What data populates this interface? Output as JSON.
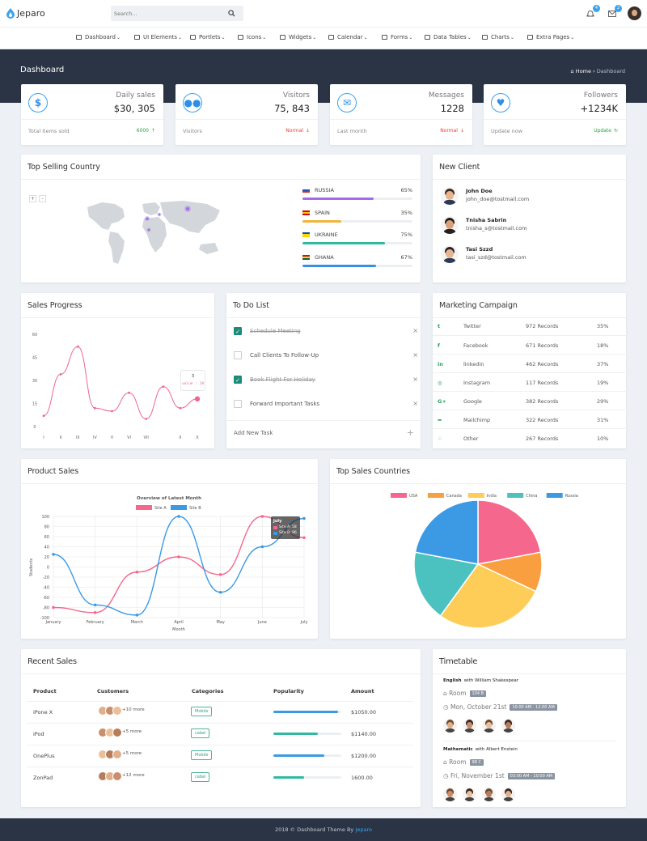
{
  "app": {
    "name": "Jeparo",
    "search_placeholder": "Search...",
    "notif_count": "4",
    "mail_count": "2"
  },
  "nav": [
    {
      "label": "Dashboard",
      "icon": "home-icon"
    },
    {
      "label": "UI Elements",
      "icon": "grid-icon"
    },
    {
      "label": "Portlets",
      "icon": "pie-icon"
    },
    {
      "label": "Icons",
      "icon": "monitor-icon"
    },
    {
      "label": "Widgets",
      "icon": "list-icon"
    },
    {
      "label": "Calendar",
      "icon": "calendar-icon"
    },
    {
      "label": "Forms",
      "icon": "form-icon"
    },
    {
      "label": "Data Tables",
      "icon": "table-icon"
    },
    {
      "label": "Charts",
      "icon": "bar-chart-icon"
    },
    {
      "label": "Extra Pages",
      "icon": "file-icon"
    }
  ],
  "hero": {
    "title": "Dashboard",
    "crumb_home": "Home",
    "crumb_current": "Dashboard"
  },
  "stats": [
    {
      "label": "Daily sales",
      "value": "$30, 305",
      "sub": "Total items sold",
      "status": "6000",
      "status_color": "#2aa148",
      "icon": "dollar-icon"
    },
    {
      "label": "Visitors",
      "value": "75, 843",
      "sub": "Visitors",
      "status": "Normal",
      "status_color": "#e2463c",
      "icon": "users-icon"
    },
    {
      "label": "Messages",
      "value": "1228",
      "sub": "Last month",
      "status": "Normal",
      "status_color": "#e2463c",
      "icon": "envelope-icon"
    },
    {
      "label": "Followers",
      "value": "+1234K",
      "sub": "Update now",
      "status": "Update",
      "status_color": "#2aa148",
      "icon": "heart-icon"
    }
  ],
  "top_selling": {
    "title": "Top Selling Country",
    "countries": [
      {
        "name": "RUSSIA",
        "percent": "65%",
        "fraction": 0.65,
        "color": "#a46ae8"
      },
      {
        "name": "SPAIN",
        "percent": "35%",
        "fraction": 0.35,
        "color": "#f2b53c"
      },
      {
        "name": "UKRAINE",
        "percent": "75%",
        "fraction": 0.75,
        "color": "#31b9a0"
      },
      {
        "name": "GHANA",
        "percent": "67%",
        "fraction": 0.67,
        "color": "#3b8fe3"
      }
    ]
  },
  "new_client": {
    "title": "New Client",
    "clients": [
      {
        "name": "John Doe",
        "email": "john_doe@tostmail.com"
      },
      {
        "name": "Tnisha Sabrin",
        "email": "tnisha_s@tostmail.com"
      },
      {
        "name": "Tasi Szzd",
        "email": "tasi_szd@tostmail.com"
      }
    ]
  },
  "sales_progress": {
    "title": "Sales Progress",
    "tooltip_title": "3",
    "tooltip_value": "value : 18"
  },
  "todo": {
    "title": "To Do List",
    "items": [
      {
        "text": "Schedule Meeting",
        "done": true
      },
      {
        "text": "Call Clients To Follow-Up",
        "done": false
      },
      {
        "text": "Book Flight For Holiday",
        "done": true
      },
      {
        "text": "Forward Important Tasks",
        "done": false
      }
    ],
    "add_label": "Add New Task"
  },
  "marketing": {
    "title": "Marketing Campaign",
    "rows": [
      {
        "icon": "twitter-icon",
        "name": "Twitter",
        "records": "972 Records",
        "pct": "35%"
      },
      {
        "icon": "facebook-icon",
        "name": "Facebook",
        "records": "671 Records",
        "pct": "18%"
      },
      {
        "icon": "linkedin-icon",
        "name": "linkedin",
        "records": "462 Records",
        "pct": "37%"
      },
      {
        "icon": "instagram-icon",
        "name": "Instagram",
        "records": "117 Records",
        "pct": "19%"
      },
      {
        "icon": "google-plus-icon",
        "name": "Google",
        "records": "382 Records",
        "pct": "29%"
      },
      {
        "icon": "share-icon",
        "name": "Mailchimp",
        "records": "322 Records",
        "pct": "31%"
      },
      {
        "icon": "pin-icon",
        "name": "Other",
        "records": "267 Records",
        "pct": "10%"
      }
    ]
  },
  "product_sales": {
    "title": "Product Sales",
    "tooltip_title": "July",
    "tooltip_a": "Site A: 58",
    "tooltip_b": "Site B: 96"
  },
  "top_countries": {
    "title": "Top Sales Countries"
  },
  "recent_sales": {
    "title": "Recent Sales",
    "headers": [
      "Product",
      "Customers",
      "Categories",
      "Popularity",
      "Amount"
    ],
    "rows": [
      {
        "product": "iPone X",
        "more": "+10 more",
        "category": "Mobile",
        "popularity": 0.95,
        "pop_color": "#3b9ae3",
        "amount": "$1050.00"
      },
      {
        "product": "iPod",
        "more": "+5 more",
        "category": "cabel",
        "popularity": 0.65,
        "pop_color": "#31b9a0",
        "amount": "$1140.00"
      },
      {
        "product": "OnePlus",
        "more": "+5 more",
        "category": "Mobile",
        "popularity": 0.75,
        "pop_color": "#3b9ae3",
        "amount": "$1200.00"
      },
      {
        "product": "ZonPad",
        "more": "+12 more",
        "category": "cabel",
        "popularity": 0.45,
        "pop_color": "#31b9a0",
        "amount": "1600.00"
      }
    ]
  },
  "timetable": {
    "title": "Timetable",
    "entries": [
      {
        "subject": "English",
        "with": "with William Shakespear",
        "room_label": "Room",
        "room": "104 B",
        "date": "Mon, October 21st",
        "time": "10:00 AM - 12:00 AM"
      },
      {
        "subject": "Mathematic",
        "with": "with Albert Enstein",
        "room_label": "Room",
        "room": "98 C",
        "date": "Fri, November 1st",
        "time": "03:00 AM - 10:00 AM"
      }
    ]
  },
  "footer": {
    "text": "2018 © Dashboard Theme By",
    "brand": "Jeparo"
  },
  "chart_data": [
    {
      "type": "line",
      "title": "",
      "x": [
        "I",
        "II",
        "III",
        "IV",
        "V",
        "VI",
        "VII",
        "",
        "II",
        "X"
      ],
      "series": [
        {
          "values": [
            7,
            34,
            52,
            12,
            10,
            22,
            5,
            26,
            12,
            18
          ]
        }
      ],
      "ylim": [
        0,
        60
      ],
      "yticks": [
        0,
        15,
        30,
        45,
        60
      ],
      "color": "#f0668f"
    },
    {
      "type": "line",
      "title": "Overview of Latest Month",
      "xlabel": "Month",
      "ylabel": "Students",
      "x": [
        "January",
        "February",
        "March",
        "April",
        "May",
        "June",
        "July"
      ],
      "series": [
        {
          "name": "Site A",
          "values": [
            -80,
            -90,
            -10,
            20,
            -15,
            100,
            58
          ],
          "color": "#f5678c"
        },
        {
          "name": "Site B",
          "values": [
            25,
            -75,
            -95,
            100,
            -50,
            40,
            96
          ],
          "color": "#3b9ae3"
        }
      ],
      "ylim": [
        -100,
        100
      ],
      "yticks": [
        100,
        80,
        60,
        40,
        20,
        0,
        -20,
        -40,
        -60,
        -80,
        -100
      ],
      "legend": "top"
    },
    {
      "type": "pie",
      "title": "",
      "categories": [
        "USA",
        "Canada",
        "India",
        "China",
        "Russia"
      ],
      "values": [
        22,
        10,
        28,
        18,
        22
      ],
      "colors": [
        "#f5678c",
        "#fa9f40",
        "#fdcd58",
        "#4cc2c0",
        "#3b9ae3"
      ],
      "legend": "top"
    }
  ]
}
